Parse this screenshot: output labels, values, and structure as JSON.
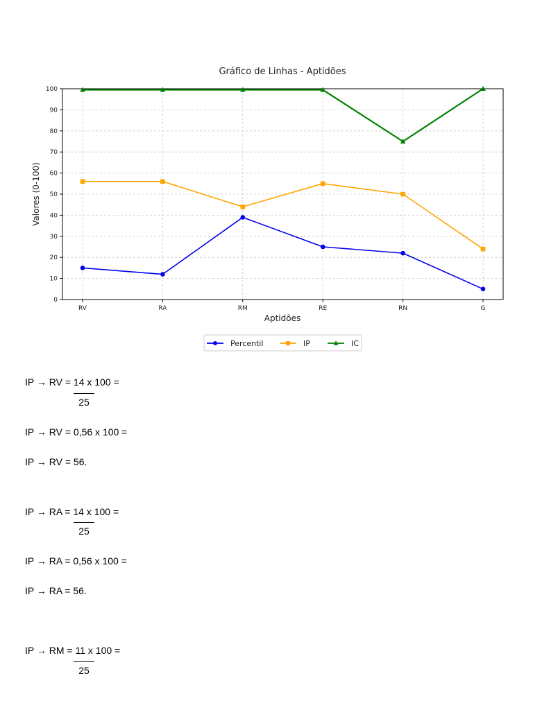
{
  "chart_data": {
    "type": "line",
    "title": "Gráfico de Linhas - Aptidões",
    "xlabel": "Aptidões",
    "ylabel": "Valores (0-100)",
    "categories": [
      "RV",
      "RA",
      "RM",
      "RE",
      "RN",
      "G"
    ],
    "ylim": [
      0,
      100
    ],
    "yticks": [
      0,
      10,
      20,
      30,
      40,
      50,
      60,
      70,
      80,
      90,
      100
    ],
    "grid": true,
    "legend_position": "bottom-center",
    "series": [
      {
        "name": "Percentil",
        "color": "#0000ee",
        "marker": "circle",
        "values": [
          15,
          12,
          39,
          25,
          22,
          5
        ]
      },
      {
        "name": "IP",
        "color": "#ffa500",
        "marker": "square",
        "values": [
          56,
          56,
          44,
          55,
          50,
          24
        ]
      },
      {
        "name": "IC",
        "color": "#008000",
        "marker": "triangle",
        "values": [
          99.5,
          99.5,
          99.5,
          99.5,
          75,
          100
        ]
      }
    ]
  },
  "document": {
    "lines": [
      {
        "text": "IP → RV = 14 x 100  ="
      },
      {
        "text": "25"
      },
      {
        "text": "IP → RV = 0,56 x 100  ="
      },
      {
        "text": "IP → RV = 56."
      },
      {
        "text": "IP → RA = 14 x 100  ="
      },
      {
        "text": "25"
      },
      {
        "text": "IP → RA = 0,56 x 100  ="
      },
      {
        "text": "IP → RA = 56."
      },
      {
        "text": "IP → RM = 11 x 100  ="
      },
      {
        "text": "25"
      }
    ]
  }
}
